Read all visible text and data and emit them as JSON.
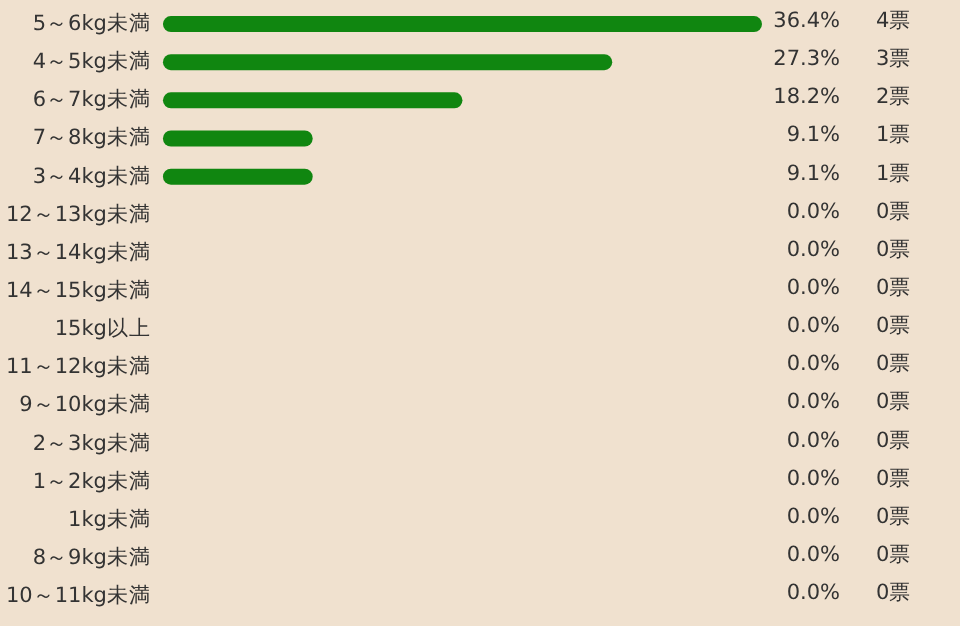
{
  "chart_data": {
    "type": "bar",
    "orientation": "horizontal",
    "color": "#108610",
    "categories": [
      "5～6kg未満",
      "4～5kg未満",
      "6～7kg未満",
      "7～8kg未満",
      "3～4kg未満",
      "12～13kg未満",
      "13～14kg未満",
      "14～15kg未満",
      "15kg以上",
      "11～12kg未満",
      "9～10kg未満",
      "2～3kg未満",
      "1～2kg未満",
      "1kg未満",
      "8～9kg未満",
      "10～11kg未満"
    ],
    "values": [
      36.4,
      27.3,
      18.2,
      9.1,
      9.1,
      0,
      0,
      0,
      0,
      0,
      0,
      0,
      0,
      0,
      0,
      0
    ],
    "value_labels": [
      "36.4%",
      "27.3%",
      "18.2%",
      "9.1%",
      "9.1%",
      "0.0%",
      "0.0%",
      "0.0%",
      "0.0%",
      "0.0%",
      "0.0%",
      "0.0%",
      "0.0%",
      "0.0%",
      "0.0%",
      "0.0%"
    ],
    "annotations": [
      "4票",
      "3票",
      "2票",
      "1票",
      "1票",
      "0票",
      "0票",
      "0票",
      "0票",
      "0票",
      "0票",
      "0票",
      "0票",
      "0票",
      "0票",
      "0票"
    ]
  }
}
